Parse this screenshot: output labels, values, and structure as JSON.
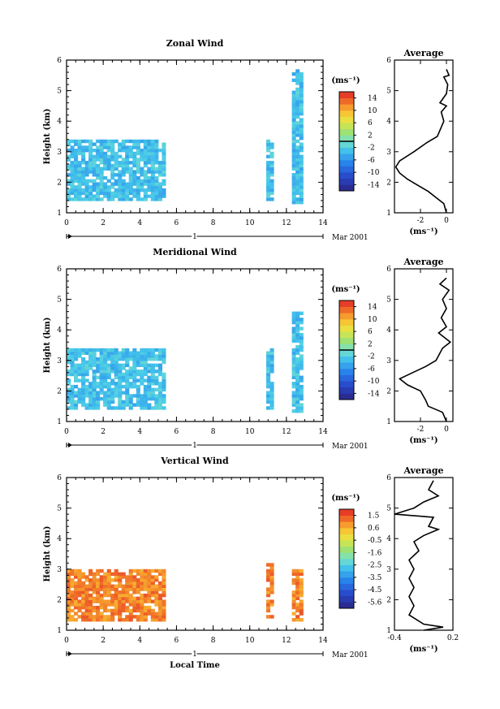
{
  "chart_data": [
    {
      "type": "heatmap",
      "title": "Zonal Wind",
      "xlabel": "",
      "ylabel": "Height (km)",
      "xlim": [
        0,
        14
      ],
      "ylim": [
        1,
        6
      ],
      "xticks": [
        "0",
        "2",
        "4",
        "6",
        "8",
        "10",
        "12",
        "14"
      ],
      "yticks": [
        "1",
        "2",
        "3",
        "4",
        "5",
        "6"
      ],
      "date_axis": {
        "tick": "1",
        "label": "Mar 2001"
      },
      "colorbar": {
        "unit": "(ms⁻¹)",
        "ticks": [
          "14",
          "10",
          "6",
          "2",
          "-2",
          "-6",
          "-10",
          "-14"
        ],
        "range": [
          -16,
          16
        ],
        "mark": 0
      },
      "blocks": [
        {
          "t": [
            0.0,
            5.3
          ],
          "h": [
            1.4,
            3.4
          ],
          "value": -3
        },
        {
          "t": [
            10.9,
            11.3
          ],
          "h": [
            1.4,
            3.4
          ],
          "value": -3
        },
        {
          "t": [
            12.3,
            12.9
          ],
          "h": [
            1.3,
            5.7
          ],
          "value": -3
        }
      ],
      "profile": {
        "title": "Average",
        "xlabel": "(ms⁻¹)",
        "xlim": [
          -4,
          0.5
        ],
        "xticks": [
          "-2",
          "0"
        ],
        "points": [
          [
            0.0,
            5.7
          ],
          [
            0.2,
            5.5
          ],
          [
            -0.2,
            5.45
          ],
          [
            0.1,
            5.2
          ],
          [
            0.0,
            4.9
          ],
          [
            -0.5,
            4.6
          ],
          [
            0.0,
            4.5
          ],
          [
            -0.4,
            4.3
          ],
          [
            -0.2,
            4.0
          ],
          [
            -0.4,
            3.8
          ],
          [
            -0.7,
            3.5
          ],
          [
            -1.5,
            3.3
          ],
          [
            -2.5,
            3.0
          ],
          [
            -3.6,
            2.7
          ],
          [
            -3.9,
            2.5
          ],
          [
            -3.6,
            2.3
          ],
          [
            -3.0,
            2.1
          ],
          [
            -2.2,
            1.9
          ],
          [
            -1.4,
            1.7
          ],
          [
            -0.8,
            1.5
          ],
          [
            -0.2,
            1.3
          ],
          [
            0.0,
            1.0
          ]
        ]
      }
    },
    {
      "type": "heatmap",
      "title": "Meridional Wind",
      "xlabel": "",
      "ylabel": "Height (km)",
      "xlim": [
        0,
        14
      ],
      "ylim": [
        1,
        6
      ],
      "xticks": [
        "0",
        "2",
        "4",
        "6",
        "8",
        "10",
        "12",
        "14"
      ],
      "yticks": [
        "1",
        "2",
        "3",
        "4",
        "5",
        "6"
      ],
      "date_axis": {
        "tick": "1",
        "label": "Mar 2001"
      },
      "colorbar": {
        "unit": "(ms⁻¹)",
        "ticks": [
          "14",
          "10",
          "6",
          "2",
          "-2",
          "-6",
          "-10",
          "-14"
        ],
        "range": [
          -16,
          16
        ],
        "mark": 0
      },
      "blocks": [
        {
          "t": [
            0.0,
            5.3
          ],
          "h": [
            1.4,
            3.4
          ],
          "value": -3
        },
        {
          "t": [
            10.9,
            11.3
          ],
          "h": [
            1.4,
            3.4
          ],
          "value": -3
        },
        {
          "t": [
            12.3,
            12.9
          ],
          "h": [
            1.3,
            4.6
          ],
          "value": -3
        }
      ],
      "profile": {
        "title": "Average",
        "xlabel": "(ms⁻¹)",
        "xlim": [
          -4,
          0.5
        ],
        "xticks": [
          "-2",
          "0"
        ],
        "points": [
          [
            0.0,
            5.7
          ],
          [
            -0.5,
            5.5
          ],
          [
            0.2,
            5.3
          ],
          [
            -0.3,
            5.0
          ],
          [
            0.0,
            4.7
          ],
          [
            -0.4,
            4.4
          ],
          [
            0.0,
            4.1
          ],
          [
            -0.6,
            3.9
          ],
          [
            0.3,
            3.6
          ],
          [
            -0.3,
            3.4
          ],
          [
            -0.8,
            3.0
          ],
          [
            -1.6,
            2.8
          ],
          [
            -2.6,
            2.6
          ],
          [
            -3.6,
            2.4
          ],
          [
            -3.0,
            2.2
          ],
          [
            -2.0,
            2.0
          ],
          [
            -1.6,
            1.7
          ],
          [
            -1.4,
            1.5
          ],
          [
            -0.3,
            1.3
          ],
          [
            0.0,
            1.0
          ]
        ]
      }
    },
    {
      "type": "heatmap",
      "title": "Vertical Wind",
      "xlabel": "Local Time",
      "ylabel": "Height (km)",
      "xlim": [
        0,
        14
      ],
      "ylim": [
        1,
        6
      ],
      "xticks": [
        "0",
        "2",
        "4",
        "6",
        "8",
        "10",
        "12",
        "14"
      ],
      "yticks": [
        "1",
        "2",
        "3",
        "4",
        "5",
        "6"
      ],
      "date_axis": {
        "tick": "1",
        "label": "Mar 2001"
      },
      "colorbar": {
        "unit": "(ms⁻¹)",
        "ticks": [
          "1.5",
          "0.6",
          "-0.5",
          "-1.6",
          "-2.5",
          "-3.5",
          "-4.5",
          "-5.6"
        ],
        "range": [
          -6,
          2
        ]
      },
      "blocks": [
        {
          "t": [
            0.0,
            5.3
          ],
          "h": [
            1.3,
            3.0
          ],
          "value": 1.0
        },
        {
          "t": [
            10.9,
            11.3
          ],
          "h": [
            1.4,
            3.2
          ],
          "value": 1.0
        },
        {
          "t": [
            12.3,
            12.9
          ],
          "h": [
            1.3,
            3.0
          ],
          "value": 1.0
        }
      ],
      "profile": {
        "title": "Average",
        "xlabel": "(ms⁻¹)",
        "xlim": [
          -0.4,
          0.2
        ],
        "xticks": [
          "-0.4",
          "0.2"
        ],
        "points": [
          [
            0.0,
            5.9
          ],
          [
            -0.05,
            5.6
          ],
          [
            0.05,
            5.4
          ],
          [
            -0.1,
            5.2
          ],
          [
            -0.2,
            5.0
          ],
          [
            -0.4,
            4.8
          ],
          [
            0.0,
            4.7
          ],
          [
            -0.05,
            4.4
          ],
          [
            0.05,
            4.3
          ],
          [
            -0.1,
            4.1
          ],
          [
            -0.2,
            3.9
          ],
          [
            -0.15,
            3.6
          ],
          [
            -0.25,
            3.3
          ],
          [
            -0.2,
            3.0
          ],
          [
            -0.25,
            2.7
          ],
          [
            -0.2,
            2.4
          ],
          [
            -0.25,
            2.1
          ],
          [
            -0.2,
            1.8
          ],
          [
            -0.25,
            1.5
          ],
          [
            -0.1,
            1.2
          ],
          [
            0.1,
            1.1
          ],
          [
            -0.1,
            1.0
          ]
        ]
      }
    }
  ]
}
